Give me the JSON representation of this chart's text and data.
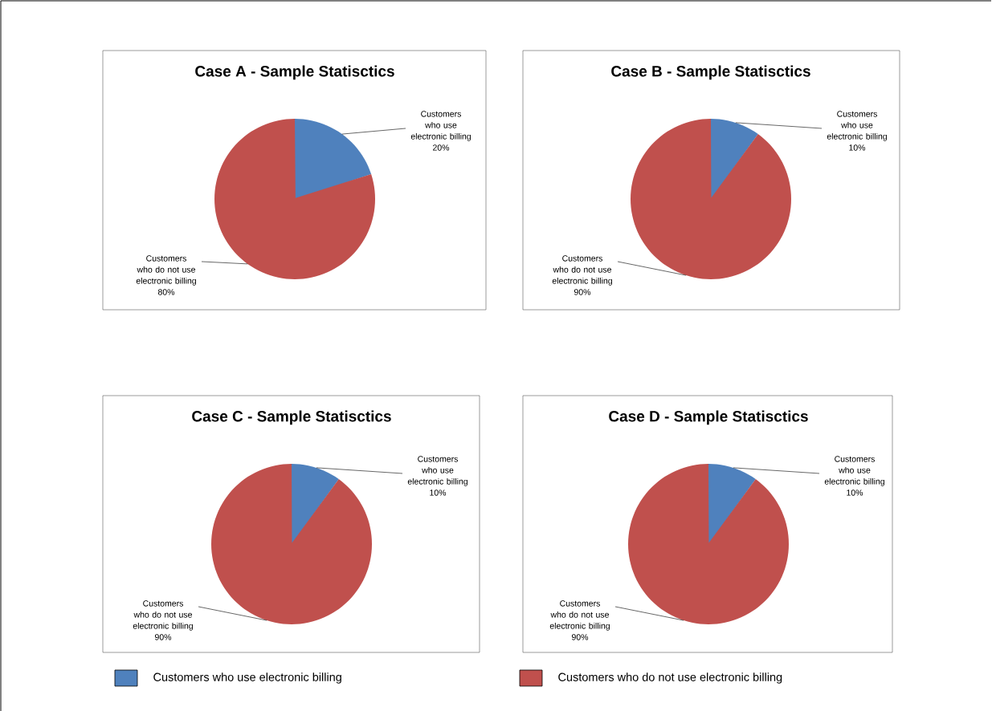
{
  "chart_data": [
    {
      "type": "pie",
      "title": "Case A - Sample Statisctics",
      "categories": [
        "Customers who use electronic billing",
        "Customers who do not use electronic billing"
      ],
      "values": [
        20,
        80
      ],
      "colors": [
        "#4f81bd",
        "#c0504d"
      ],
      "value_labels": [
        "20%",
        "80%"
      ]
    },
    {
      "type": "pie",
      "title": "Case B - Sample Statisctics",
      "categories": [
        "Customers who use electronic billing",
        "Customers who do not use electronic billing"
      ],
      "values": [
        10,
        90
      ],
      "colors": [
        "#4f81bd",
        "#c0504d"
      ],
      "value_labels": [
        "10%",
        "90%"
      ]
    },
    {
      "type": "pie",
      "title": "Case C - Sample Statisctics",
      "categories": [
        "Customers who use electronic billing",
        "Customers who do not use electronic billing"
      ],
      "values": [
        10,
        90
      ],
      "colors": [
        "#4f81bd",
        "#c0504d"
      ],
      "value_labels": [
        "10%",
        "90%"
      ]
    },
    {
      "type": "pie",
      "title": "Case D - Sample Statisctics",
      "categories": [
        "Customers who use electronic billing",
        "Customers who do not use electronic billing"
      ],
      "values": [
        10,
        90
      ],
      "colors": [
        "#4f81bd",
        "#c0504d"
      ],
      "value_labels": [
        "10%",
        "90%"
      ],
      "legend": "bottom"
    }
  ]
}
